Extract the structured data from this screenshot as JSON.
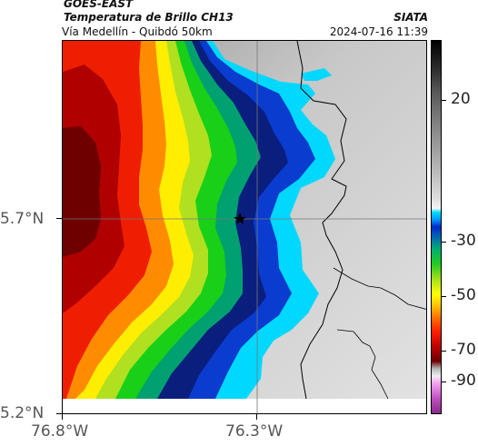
{
  "header": {
    "satellite": "GOES-EAST",
    "product": "Temperatura de Brillo CH13",
    "route": "Vía Medellín - Quibdó 50km",
    "organization": "SIATA",
    "timestamp": "2024-07-16 11:39"
  },
  "map": {
    "marker_icon": "star-icon",
    "latitude_labels": [
      "5.7°N",
      "5.2°N"
    ],
    "longitude_labels": [
      "76.8°W",
      "76.3°W"
    ]
  },
  "colorbar": {
    "labels": [
      "20",
      "-30",
      "-50",
      "-70",
      "-90"
    ]
  },
  "colors": {
    "cold_cloud": "#6e0000",
    "warm_surface": "#c8c8c8",
    "cyan_edge": "#00e0ff",
    "frame": "#000000"
  }
}
